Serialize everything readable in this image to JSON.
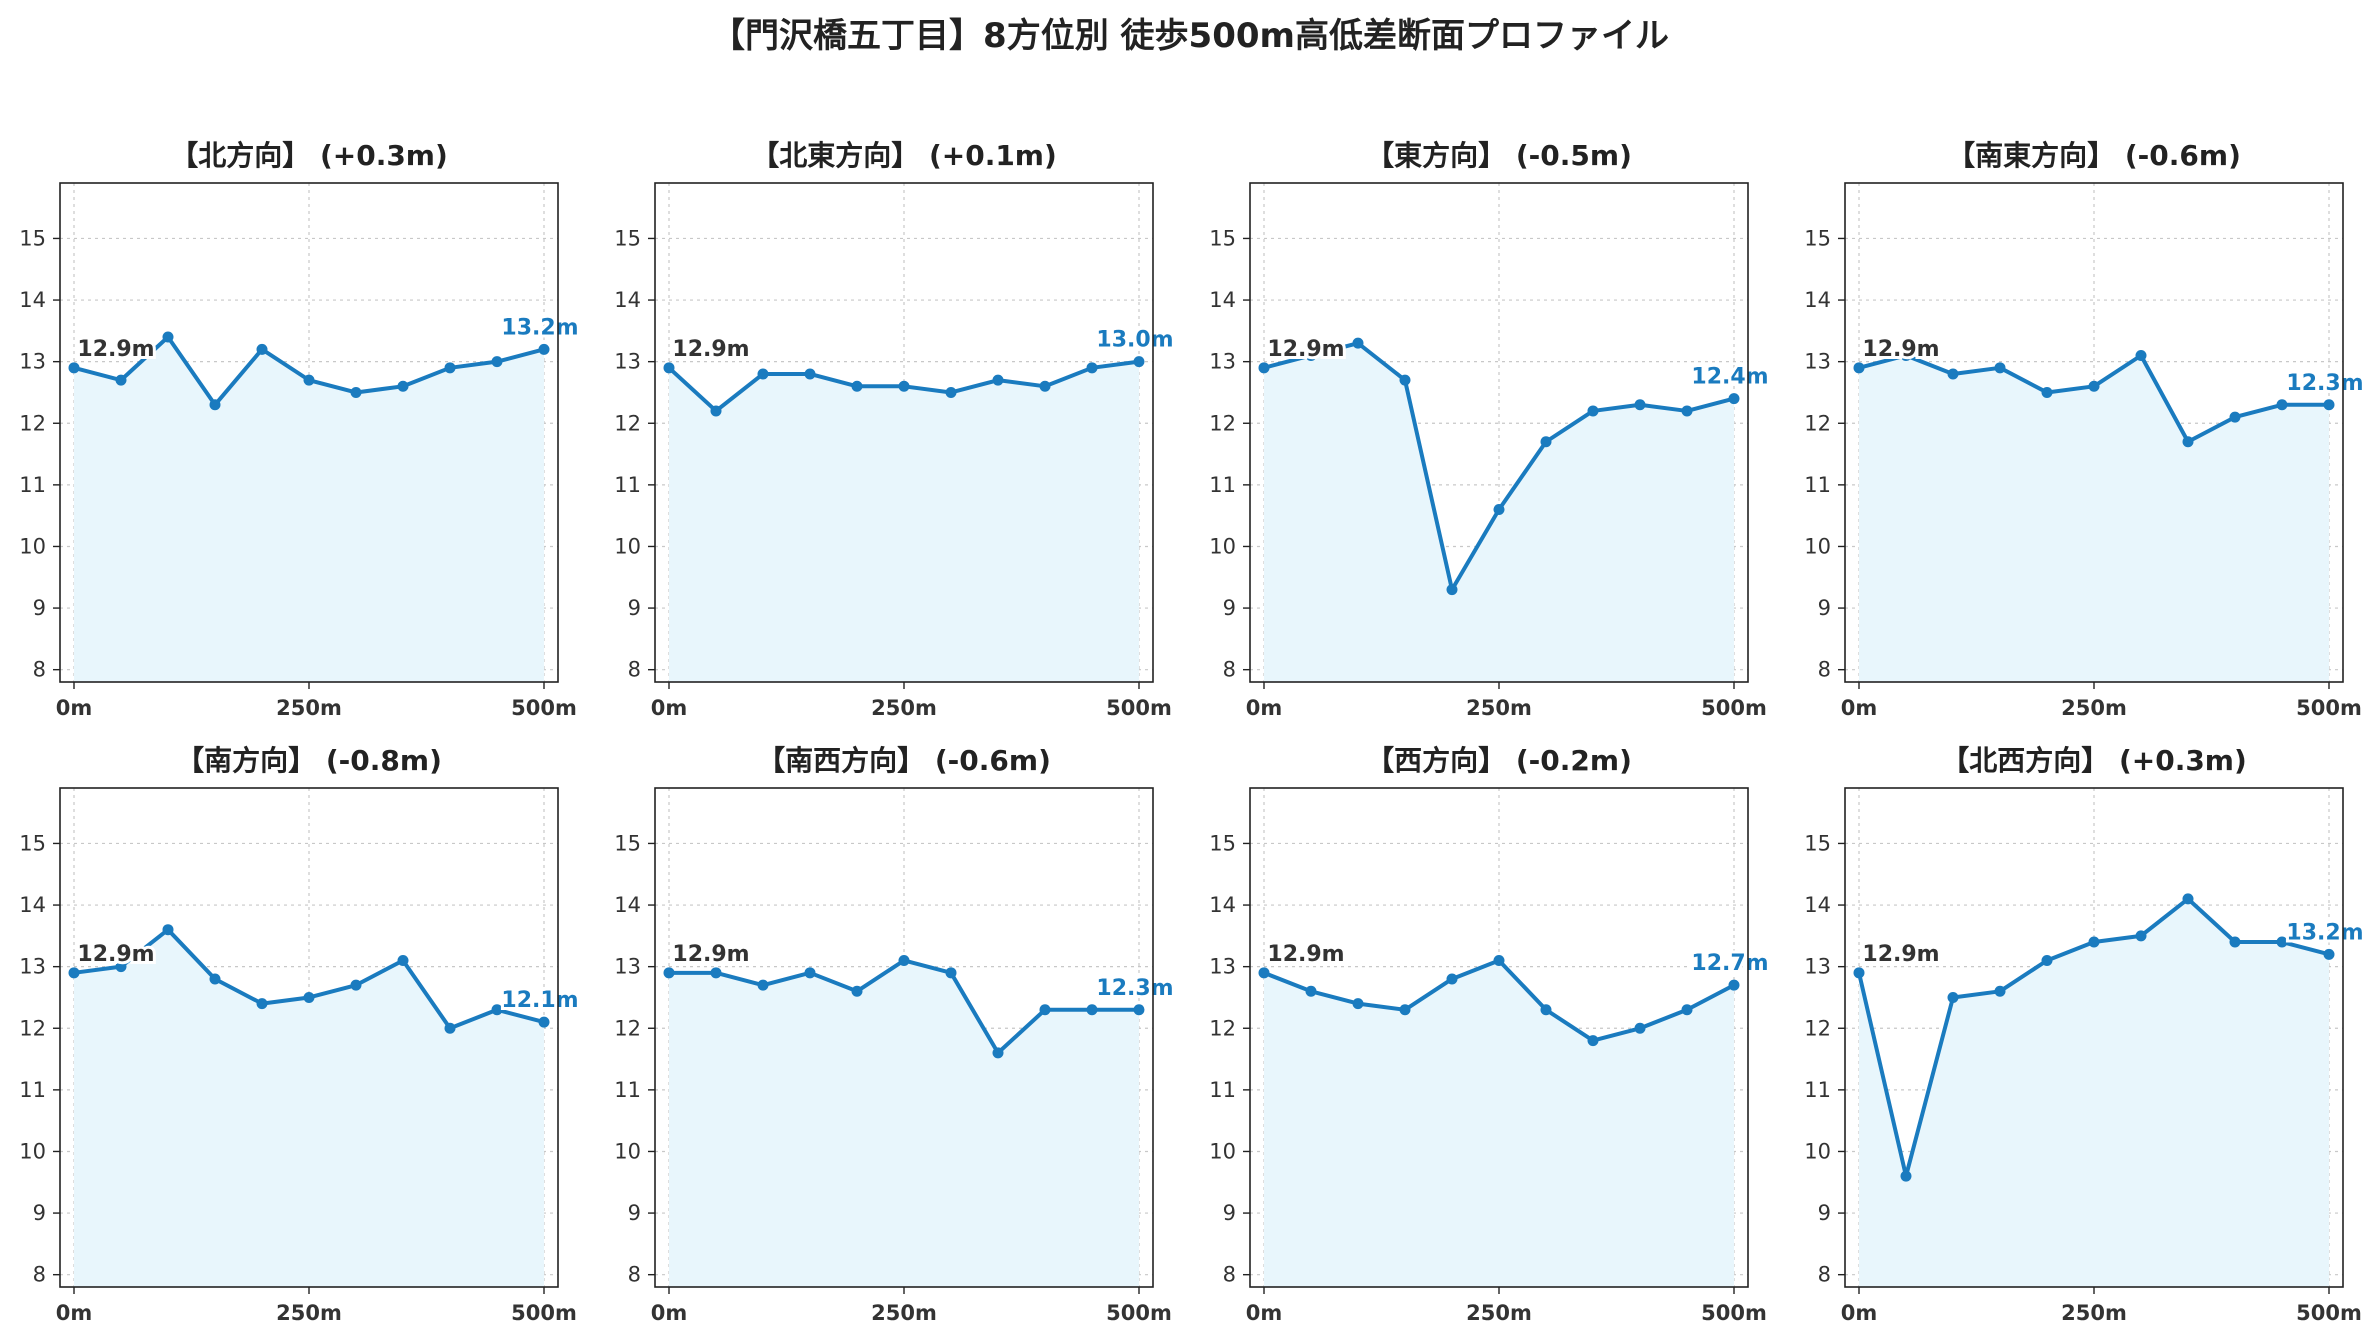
{
  "title": "【門沢橋五丁目】8方位別 徒歩500m高低差断面プロファイル",
  "colors": {
    "line": "#1a7bbf",
    "fill": "#e8f6fc",
    "grid": "#c8c8c8",
    "axis": "#222222"
  },
  "chart_data": [
    {
      "type": "line",
      "title": "【北方向】 (+0.3m)",
      "x": [
        0,
        50,
        100,
        150,
        200,
        250,
        300,
        350,
        400,
        450,
        500
      ],
      "values": [
        12.9,
        12.7,
        13.4,
        12.3,
        13.2,
        12.7,
        12.5,
        12.6,
        12.9,
        13.0,
        13.2
      ],
      "start_label": "12.9m",
      "end_label": "13.2m",
      "xticks": [
        "0m",
        "250m",
        "500m"
      ],
      "yticks": [
        8,
        9,
        10,
        11,
        12,
        13,
        14,
        15
      ],
      "ylim": [
        7.8,
        15.9
      ],
      "grid": true
    },
    {
      "type": "line",
      "title": "【北東方向】 (+0.1m)",
      "x": [
        0,
        50,
        100,
        150,
        200,
        250,
        300,
        350,
        400,
        450,
        500
      ],
      "values": [
        12.9,
        12.2,
        12.8,
        12.8,
        12.6,
        12.6,
        12.5,
        12.7,
        12.6,
        12.9,
        13.0
      ],
      "start_label": "12.9m",
      "end_label": "13.0m",
      "xticks": [
        "0m",
        "250m",
        "500m"
      ],
      "yticks": [
        8,
        9,
        10,
        11,
        12,
        13,
        14,
        15
      ],
      "ylim": [
        7.8,
        15.9
      ],
      "grid": true
    },
    {
      "type": "line",
      "title": "【東方向】 (-0.5m)",
      "x": [
        0,
        50,
        100,
        150,
        200,
        250,
        300,
        350,
        400,
        450,
        500
      ],
      "values": [
        12.9,
        13.1,
        13.3,
        12.7,
        9.3,
        10.6,
        11.7,
        12.2,
        12.3,
        12.2,
        12.4
      ],
      "start_label": "12.9m",
      "end_label": "12.4m",
      "xticks": [
        "0m",
        "250m",
        "500m"
      ],
      "yticks": [
        8,
        9,
        10,
        11,
        12,
        13,
        14,
        15
      ],
      "ylim": [
        7.8,
        15.9
      ],
      "grid": true
    },
    {
      "type": "line",
      "title": "【南東方向】 (-0.6m)",
      "x": [
        0,
        50,
        100,
        150,
        200,
        250,
        300,
        350,
        400,
        450,
        500
      ],
      "values": [
        12.9,
        13.1,
        12.8,
        12.9,
        12.5,
        12.6,
        13.1,
        11.7,
        12.1,
        12.3,
        12.3
      ],
      "start_label": "12.9m",
      "end_label": "12.3m",
      "xticks": [
        "0m",
        "250m",
        "500m"
      ],
      "yticks": [
        8,
        9,
        10,
        11,
        12,
        13,
        14,
        15
      ],
      "ylim": [
        7.8,
        15.9
      ],
      "grid": true
    },
    {
      "type": "line",
      "title": "【南方向】 (-0.8m)",
      "x": [
        0,
        50,
        100,
        150,
        200,
        250,
        300,
        350,
        400,
        450,
        500
      ],
      "values": [
        12.9,
        13.0,
        13.6,
        12.8,
        12.4,
        12.5,
        12.7,
        13.1,
        12.0,
        12.3,
        12.1
      ],
      "start_label": "12.9m",
      "end_label": "12.1m",
      "xticks": [
        "0m",
        "250m",
        "500m"
      ],
      "yticks": [
        8,
        9,
        10,
        11,
        12,
        13,
        14,
        15
      ],
      "ylim": [
        7.8,
        15.9
      ],
      "grid": true
    },
    {
      "type": "line",
      "title": "【南西方向】 (-0.6m)",
      "x": [
        0,
        50,
        100,
        150,
        200,
        250,
        300,
        350,
        400,
        450,
        500
      ],
      "values": [
        12.9,
        12.9,
        12.7,
        12.9,
        12.6,
        13.1,
        12.9,
        11.6,
        12.3,
        12.3,
        12.3
      ],
      "start_label": "12.9m",
      "end_label": "12.3m",
      "xticks": [
        "0m",
        "250m",
        "500m"
      ],
      "yticks": [
        8,
        9,
        10,
        11,
        12,
        13,
        14,
        15
      ],
      "ylim": [
        7.8,
        15.9
      ],
      "grid": true
    },
    {
      "type": "line",
      "title": "【西方向】 (-0.2m)",
      "x": [
        0,
        50,
        100,
        150,
        200,
        250,
        300,
        350,
        400,
        450,
        500
      ],
      "values": [
        12.9,
        12.6,
        12.4,
        12.3,
        12.8,
        13.1,
        12.3,
        11.8,
        12.0,
        12.3,
        12.7
      ],
      "start_label": "12.9m",
      "end_label": "12.7m",
      "xticks": [
        "0m",
        "250m",
        "500m"
      ],
      "yticks": [
        8,
        9,
        10,
        11,
        12,
        13,
        14,
        15
      ],
      "ylim": [
        7.8,
        15.9
      ],
      "grid": true
    },
    {
      "type": "line",
      "title": "【北西方向】 (+0.3m)",
      "x": [
        0,
        50,
        100,
        150,
        200,
        250,
        300,
        350,
        400,
        450,
        500
      ],
      "values": [
        12.9,
        9.6,
        12.5,
        12.6,
        13.1,
        13.4,
        13.5,
        14.1,
        13.4,
        13.4,
        13.2
      ],
      "start_label": "12.9m",
      "end_label": "13.2m",
      "xticks": [
        "0m",
        "250m",
        "500m"
      ],
      "yticks": [
        8,
        9,
        10,
        11,
        12,
        13,
        14,
        15
      ],
      "ylim": [
        7.8,
        15.9
      ],
      "grid": true
    }
  ]
}
